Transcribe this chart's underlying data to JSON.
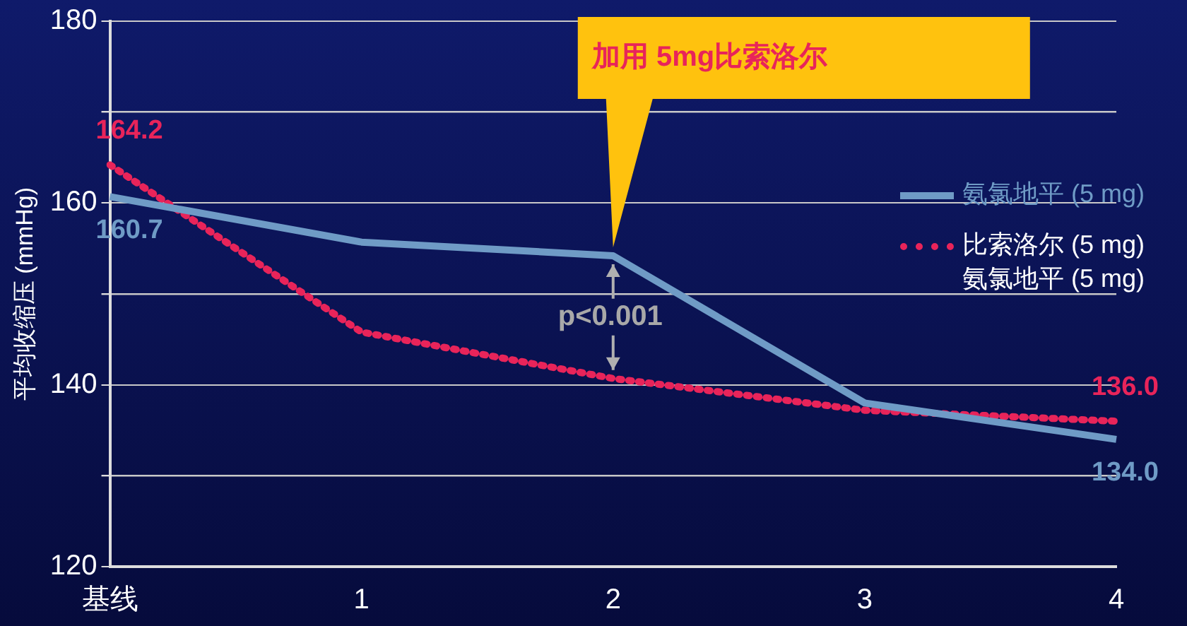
{
  "chart_data": {
    "type": "line",
    "ylabel": "平均收缩压 (mmHg)",
    "categories": [
      "基线",
      "1",
      "2",
      "3",
      "4"
    ],
    "series": [
      {
        "name": "氨氯地平 (5 mg)",
        "color": "#6f9bc6",
        "line_style": "solid",
        "values": [
          160.7,
          155.7,
          154.2,
          138.0,
          134.0
        ],
        "value_labels": [
          "160.7",
          null,
          null,
          null,
          "134.0"
        ]
      },
      {
        "name": "比索洛尔 (5 mg)\n氨氯地平 (5 mg)",
        "color": "#e8245a",
        "line_style": "dotted",
        "values": [
          164.2,
          145.8,
          140.7,
          137.2,
          136.0
        ],
        "value_labels": [
          "164.2",
          null,
          null,
          null,
          "136.0"
        ]
      }
    ],
    "ylim": [
      120,
      180
    ],
    "yticks": [
      120,
      {
        "value": 130,
        "label": null
      },
      140,
      {
        "value": 150,
        "label": null
      },
      160,
      {
        "value": 170,
        "label": null
      },
      180
    ],
    "grid": "y",
    "legend": "right",
    "marker": "none",
    "annotations": [
      "加用 5mg比索洛尔",
      "p<0.001"
    ]
  }
}
